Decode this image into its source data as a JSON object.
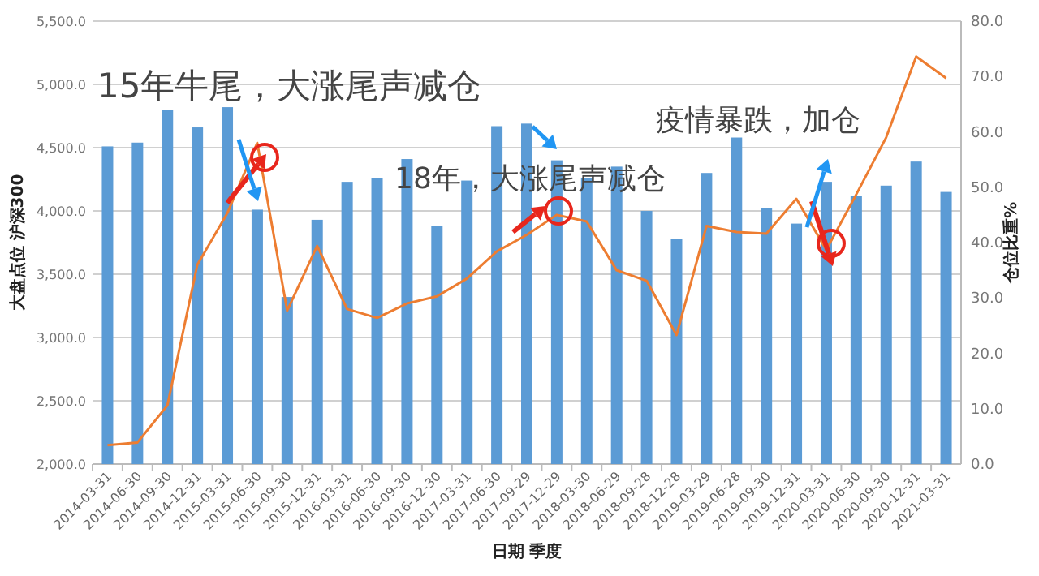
{
  "chart_data": {
    "type": "bar",
    "xlabel": "日期 季度",
    "ylabel": "大盘点位 沪深300",
    "y2label": "仓位比重%",
    "categories": [
      "2014-03-31",
      "2014-06-30",
      "2014-09-30",
      "2014-12-31",
      "2015-03-31",
      "2015-06-30",
      "2015-09-30",
      "2015-12-31",
      "2016-03-31",
      "2016-06-30",
      "2016-09-30",
      "2016-12-30",
      "2017-03-31",
      "2017-06-30",
      "2017-09-29",
      "2017-12-29",
      "2018-03-30",
      "2018-06-29",
      "2018-09-28",
      "2018-12-28",
      "2019-03-29",
      "2019-06-28",
      "2019-09-30",
      "2019-12-31",
      "2020-03-31",
      "2020-06-30",
      "2020-09-30",
      "2020-12-31",
      "2021-03-31"
    ],
    "series": [
      {
        "color": "#5b9bd5",
        "values": [
          4510,
          4540,
          4800,
          4660,
          4820,
          4010,
          3320,
          3930,
          4230,
          4260,
          4410,
          3880,
          4240,
          4670,
          4690,
          4400,
          4260,
          4350,
          4000,
          3780,
          4300,
          4580,
          4020,
          3900,
          4230,
          4120,
          4200,
          4390,
          4150
        ]
      },
      {
        "type": "line",
        "axis": "y2",
        "color": "#ed7d31",
        "values": [
          3.4,
          3.9,
          10.6,
          36.0,
          45.3,
          58.0,
          27.7,
          39.4,
          28.0,
          26.4,
          29.0,
          30.3,
          33.5,
          38.4,
          41.4,
          45.0,
          43.8,
          35.0,
          33.1,
          23.3,
          43.0,
          41.9,
          41.6,
          47.9,
          38.7,
          48.7,
          59.0,
          73.6,
          69.7
        ]
      }
    ],
    "ylim": [
      2000,
      5500
    ],
    "yticks": [
      {
        "value": 2000,
        "label": "2,000.0"
      },
      {
        "value": 2500,
        "label": "2,500.0"
      },
      {
        "value": 3000,
        "label": "3,000.0"
      },
      {
        "value": 3500,
        "label": "3,500.0"
      },
      {
        "value": 4000,
        "label": "4,000.0"
      },
      {
        "value": 4500,
        "label": "4,500.0"
      },
      {
        "value": 5000,
        "label": "5,000.0"
      },
      {
        "value": 5500,
        "label": "5,500.0"
      }
    ],
    "y2lim": [
      0,
      80
    ],
    "y2ticks": [
      {
        "value": 0,
        "label": "0.0"
      },
      {
        "value": 10,
        "label": "10.0"
      },
      {
        "value": 20,
        "label": "20.0"
      },
      {
        "value": 30,
        "label": "30.0"
      },
      {
        "value": 40,
        "label": "40.0"
      },
      {
        "value": 50,
        "label": "50.0"
      },
      {
        "value": 60,
        "label": "60.0"
      },
      {
        "value": 70,
        "label": "70.0"
      },
      {
        "value": 80,
        "label": "80.0"
      }
    ],
    "grid": "y",
    "annotations": [
      "15年牛尾，大涨尾声减仓",
      "18年，大涨尾声减仓",
      {
        "text": "疫情暴跌，加仓",
        "x": "2020-03-31",
        "y": 4230
      }
    ]
  }
}
